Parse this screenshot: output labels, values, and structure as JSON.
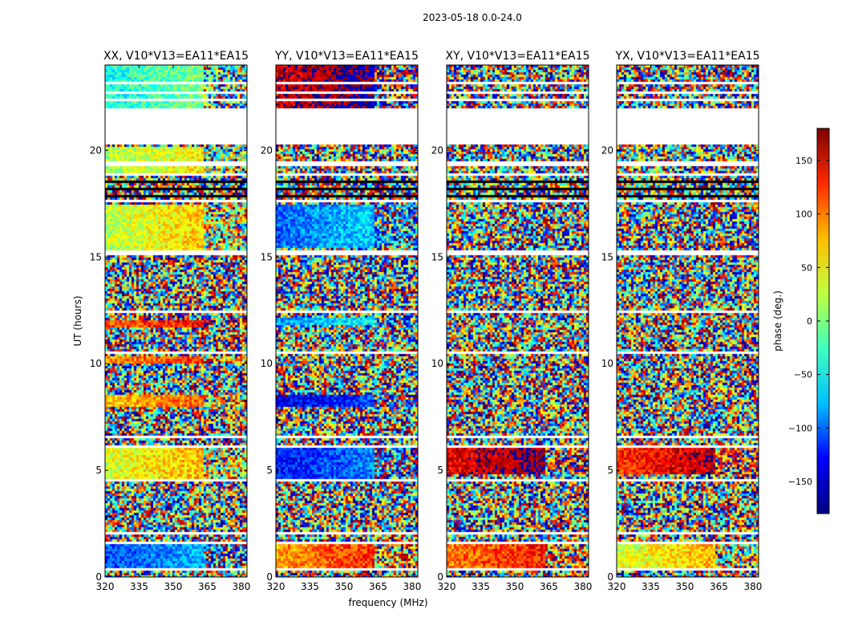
{
  "figure": {
    "suptitle": "2023-05-18 0.0-24.0",
    "xlabel": "frequency (MHz)",
    "ylabel": "UT (hours)"
  },
  "colorbar": {
    "label": "phase (deg.)",
    "range": [
      -180,
      180
    ],
    "ticks": [
      150,
      100,
      50,
      0,
      -50,
      -100,
      -150
    ],
    "tick_labels": [
      "150",
      "100",
      "50",
      "0",
      "−50",
      "−100",
      "−150"
    ],
    "colormap": "jet",
    "stops": [
      "#00007f",
      "#0000ff",
      "#00bfff",
      "#40ffbf",
      "#bfff40",
      "#ffbf00",
      "#ff2a00",
      "#7f0000"
    ]
  },
  "chart_data": [
    {
      "type": "heatmap",
      "title": "XX, V10*V13=EA11*EA15",
      "xlim": [
        320,
        382.5
      ],
      "ylim": [
        0,
        24
      ],
      "xticks": [
        320,
        335,
        350,
        365,
        380
      ],
      "yticks": [
        0,
        5,
        10,
        15,
        20
      ],
      "coherent_bands": [
        [
          0.3,
          1.5,
          -110
        ],
        [
          4.6,
          6.0,
          30
        ],
        [
          8.0,
          8.5,
          60
        ],
        [
          10.0,
          10.4,
          80
        ],
        [
          11.7,
          12.0,
          100
        ],
        [
          15.3,
          17.5,
          20
        ],
        [
          18.9,
          20.2,
          10
        ],
        [
          22.0,
          24.0,
          -40
        ]
      ]
    },
    {
      "type": "heatmap",
      "title": "YY, V10*V13=EA11*EA15",
      "xlim": [
        320,
        382.5
      ],
      "ylim": [
        0,
        24
      ],
      "xticks": [
        320,
        335,
        350,
        365,
        380
      ],
      "yticks": [
        0,
        5,
        10,
        15,
        20
      ],
      "coherent_bands": [
        [
          0.3,
          1.5,
          80
        ],
        [
          4.6,
          6.0,
          -130
        ],
        [
          8.0,
          8.5,
          -150
        ],
        [
          11.8,
          12.2,
          -80
        ],
        [
          15.4,
          17.5,
          -100
        ],
        [
          22.0,
          24.0,
          150
        ]
      ]
    },
    {
      "type": "heatmap",
      "title": "XY, V10*V13=EA11*EA15",
      "xlim": [
        320,
        382.5
      ],
      "ylim": [
        0,
        24
      ],
      "xticks": [
        320,
        335,
        350,
        365,
        380
      ],
      "yticks": [
        0,
        5,
        10,
        15,
        20
      ],
      "coherent_bands": [
        [
          0.4,
          1.6,
          90
        ],
        [
          4.8,
          6.0,
          140
        ]
      ]
    },
    {
      "type": "heatmap",
      "title": "YX, V10*V13=EA11*EA15",
      "xlim": [
        320,
        382.5
      ],
      "ylim": [
        0,
        24
      ],
      "xticks": [
        320,
        335,
        350,
        365,
        380
      ],
      "yticks": [
        0,
        5,
        10,
        15,
        20
      ],
      "coherent_bands": [
        [
          0.4,
          1.6,
          30
        ],
        [
          4.8,
          6.0,
          120
        ]
      ]
    }
  ],
  "gaps_hours": [
    [
      0.3,
      0.38
    ],
    [
      1.5,
      1.65
    ],
    [
      2.0,
      2.08
    ],
    [
      4.45,
      4.6
    ],
    [
      6.05,
      6.2
    ],
    [
      6.55,
      6.62
    ],
    [
      8.6,
      8.7
    ],
    [
      10.42,
      10.55
    ],
    [
      12.4,
      12.46
    ],
    [
      15.05,
      15.3
    ],
    [
      17.6,
      17.7
    ],
    [
      18.85,
      18.95
    ],
    [
      19.3,
      19.5
    ],
    [
      20.3,
      22.0
    ],
    [
      22.3,
      22.4
    ],
    [
      22.7,
      22.78
    ],
    [
      23.1,
      23.16
    ]
  ],
  "dark_rows_hours": [
    [
      17.75,
      18.9
    ]
  ]
}
